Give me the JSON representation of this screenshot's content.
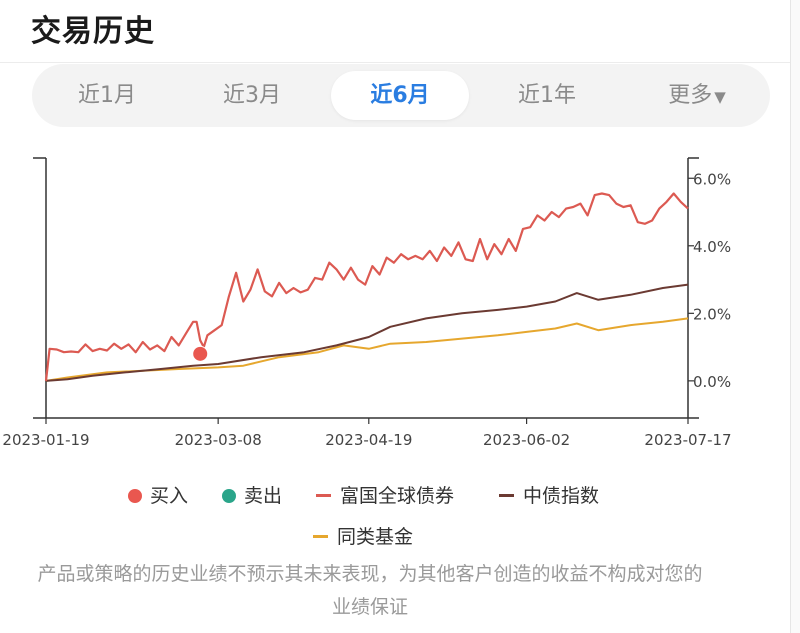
{
  "header": {
    "title": "交易历史"
  },
  "range_tabs": [
    {
      "label": "近1月",
      "active": false
    },
    {
      "label": "近3月",
      "active": false
    },
    {
      "label": "近6月",
      "active": true
    },
    {
      "label": "近1年",
      "active": false
    },
    {
      "label": "更多",
      "arrow": "▼",
      "active": false
    }
  ],
  "colors": {
    "fund": "#dc5a52",
    "index": "#6b3a32",
    "peer": "#e6a72e",
    "buy": "#e9574f",
    "sell": "#2aa58a",
    "accent": "#2a7de1",
    "axis": "#333333"
  },
  "chart_data": {
    "type": "line",
    "x_range": [
      "2023-01-19",
      "2023-07-17"
    ],
    "x_ticks": [
      "2023-01-19",
      "2023-03-08",
      "2023-04-19",
      "2023-06-02",
      "2023-07-17"
    ],
    "y_ticks": [
      "0.0%",
      "2.0%",
      "4.0%",
      "6.0%"
    ],
    "ylim": [
      -1.1,
      6.6
    ],
    "grid": false,
    "series": [
      {
        "name": "富国全球债券",
        "color_key": "fund",
        "points": [
          [
            "2023-01-19",
            0.0
          ],
          [
            "2023-01-20",
            0.95
          ],
          [
            "2023-01-22",
            0.93
          ],
          [
            "2023-01-24",
            0.85
          ],
          [
            "2023-01-26",
            0.87
          ],
          [
            "2023-01-28",
            0.85
          ],
          [
            "2023-01-30",
            1.08
          ],
          [
            "2023-02-01",
            0.88
          ],
          [
            "2023-02-03",
            0.95
          ],
          [
            "2023-02-05",
            0.9
          ],
          [
            "2023-02-07",
            1.1
          ],
          [
            "2023-02-09",
            0.95
          ],
          [
            "2023-02-11",
            1.08
          ],
          [
            "2023-02-13",
            0.85
          ],
          [
            "2023-02-15",
            1.15
          ],
          [
            "2023-02-17",
            0.93
          ],
          [
            "2023-02-19",
            1.05
          ],
          [
            "2023-02-21",
            0.88
          ],
          [
            "2023-02-23",
            1.3
          ],
          [
            "2023-02-25",
            1.05
          ],
          [
            "2023-02-27",
            1.4
          ],
          [
            "2023-03-01",
            1.75
          ],
          [
            "2023-03-02",
            1.75
          ],
          [
            "2023-03-03",
            1.2
          ],
          [
            "2023-03-04",
            1.0
          ],
          [
            "2023-03-05",
            1.35
          ],
          [
            "2023-03-07",
            1.5
          ],
          [
            "2023-03-09",
            1.65
          ],
          [
            "2023-03-11",
            2.5
          ],
          [
            "2023-03-13",
            3.2
          ],
          [
            "2023-03-15",
            2.35
          ],
          [
            "2023-03-17",
            2.7
          ],
          [
            "2023-03-19",
            3.3
          ],
          [
            "2023-03-21",
            2.65
          ],
          [
            "2023-03-23",
            2.5
          ],
          [
            "2023-03-25",
            2.9
          ],
          [
            "2023-03-27",
            2.6
          ],
          [
            "2023-03-29",
            2.75
          ],
          [
            "2023-03-31",
            2.62
          ],
          [
            "2023-04-02",
            2.7
          ],
          [
            "2023-04-04",
            3.05
          ],
          [
            "2023-04-06",
            3.0
          ],
          [
            "2023-04-08",
            3.5
          ],
          [
            "2023-04-10",
            3.3
          ],
          [
            "2023-04-12",
            3.0
          ],
          [
            "2023-04-14",
            3.35
          ],
          [
            "2023-04-16",
            3.0
          ],
          [
            "2023-04-18",
            2.85
          ],
          [
            "2023-04-20",
            3.4
          ],
          [
            "2023-04-22",
            3.15
          ],
          [
            "2023-04-24",
            3.65
          ],
          [
            "2023-04-26",
            3.5
          ],
          [
            "2023-04-28",
            3.75
          ],
          [
            "2023-04-30",
            3.6
          ],
          [
            "2023-05-02",
            3.7
          ],
          [
            "2023-05-04",
            3.6
          ],
          [
            "2023-05-06",
            3.85
          ],
          [
            "2023-05-08",
            3.55
          ],
          [
            "2023-05-10",
            3.95
          ],
          [
            "2023-05-12",
            3.7
          ],
          [
            "2023-05-14",
            4.1
          ],
          [
            "2023-05-16",
            3.6
          ],
          [
            "2023-05-18",
            3.55
          ],
          [
            "2023-05-20",
            4.2
          ],
          [
            "2023-05-22",
            3.6
          ],
          [
            "2023-05-24",
            4.05
          ],
          [
            "2023-05-26",
            3.75
          ],
          [
            "2023-05-28",
            4.2
          ],
          [
            "2023-05-30",
            3.85
          ],
          [
            "2023-06-01",
            4.5
          ],
          [
            "2023-06-03",
            4.55
          ],
          [
            "2023-06-05",
            4.9
          ],
          [
            "2023-06-07",
            4.75
          ],
          [
            "2023-06-09",
            5.0
          ],
          [
            "2023-06-11",
            4.85
          ],
          [
            "2023-06-13",
            5.1
          ],
          [
            "2023-06-15",
            5.15
          ],
          [
            "2023-06-17",
            5.25
          ],
          [
            "2023-06-19",
            4.9
          ],
          [
            "2023-06-21",
            5.5
          ],
          [
            "2023-06-23",
            5.55
          ],
          [
            "2023-06-25",
            5.5
          ],
          [
            "2023-06-27",
            5.25
          ],
          [
            "2023-06-29",
            5.15
          ],
          [
            "2023-07-01",
            5.2
          ],
          [
            "2023-07-03",
            4.7
          ],
          [
            "2023-07-05",
            4.65
          ],
          [
            "2023-07-07",
            4.75
          ],
          [
            "2023-07-09",
            5.1
          ],
          [
            "2023-07-11",
            5.3
          ],
          [
            "2023-07-13",
            5.55
          ],
          [
            "2023-07-15",
            5.3
          ],
          [
            "2023-07-17",
            5.1
          ]
        ]
      },
      {
        "name": "中债指数",
        "color_key": "index",
        "points": [
          [
            "2023-01-19",
            0.0
          ],
          [
            "2023-01-25",
            0.05
          ],
          [
            "2023-02-01",
            0.15
          ],
          [
            "2023-02-10",
            0.25
          ],
          [
            "2023-02-20",
            0.35
          ],
          [
            "2023-03-01",
            0.45
          ],
          [
            "2023-03-08",
            0.5
          ],
          [
            "2023-03-20",
            0.7
          ],
          [
            "2023-04-01",
            0.85
          ],
          [
            "2023-04-10",
            1.05
          ],
          [
            "2023-04-19",
            1.3
          ],
          [
            "2023-04-25",
            1.6
          ],
          [
            "2023-05-05",
            1.85
          ],
          [
            "2023-05-15",
            2.0
          ],
          [
            "2023-05-25",
            2.1
          ],
          [
            "2023-06-02",
            2.2
          ],
          [
            "2023-06-10",
            2.35
          ],
          [
            "2023-06-16",
            2.6
          ],
          [
            "2023-06-22",
            2.4
          ],
          [
            "2023-07-01",
            2.55
          ],
          [
            "2023-07-10",
            2.75
          ],
          [
            "2023-07-17",
            2.85
          ]
        ]
      },
      {
        "name": "同类基金",
        "color_key": "peer",
        "points": [
          [
            "2023-01-19",
            0.0
          ],
          [
            "2023-01-25",
            0.1
          ],
          [
            "2023-02-05",
            0.25
          ],
          [
            "2023-02-15",
            0.3
          ],
          [
            "2023-02-25",
            0.35
          ],
          [
            "2023-03-08",
            0.4
          ],
          [
            "2023-03-15",
            0.45
          ],
          [
            "2023-03-25",
            0.7
          ],
          [
            "2023-04-05",
            0.85
          ],
          [
            "2023-04-12",
            1.05
          ],
          [
            "2023-04-19",
            0.95
          ],
          [
            "2023-04-25",
            1.1
          ],
          [
            "2023-05-05",
            1.15
          ],
          [
            "2023-05-15",
            1.25
          ],
          [
            "2023-05-25",
            1.35
          ],
          [
            "2023-06-02",
            1.45
          ],
          [
            "2023-06-10",
            1.55
          ],
          [
            "2023-06-16",
            1.7
          ],
          [
            "2023-06-22",
            1.5
          ],
          [
            "2023-07-01",
            1.65
          ],
          [
            "2023-07-10",
            1.75
          ],
          [
            "2023-07-17",
            1.85
          ]
        ]
      }
    ],
    "markers": [
      {
        "type": "buy",
        "date": "2023-03-03",
        "value": 0.8
      }
    ],
    "legend": {
      "placement": "bottom",
      "items": [
        {
          "label": "买入",
          "shape": "dot",
          "color_key": "buy"
        },
        {
          "label": "卖出",
          "shape": "dot",
          "color_key": "sell"
        },
        {
          "label": "富国全球债券",
          "shape": "line",
          "color_key": "fund"
        },
        {
          "label": "中债指数",
          "shape": "line",
          "color_key": "index"
        },
        {
          "label": "同类基金",
          "shape": "line",
          "color_key": "peer"
        }
      ]
    }
  },
  "disclaimer": "产品或策略的历史业绩不预示其未来表现，为其他客户创造的收益不构成对您的业绩保证"
}
